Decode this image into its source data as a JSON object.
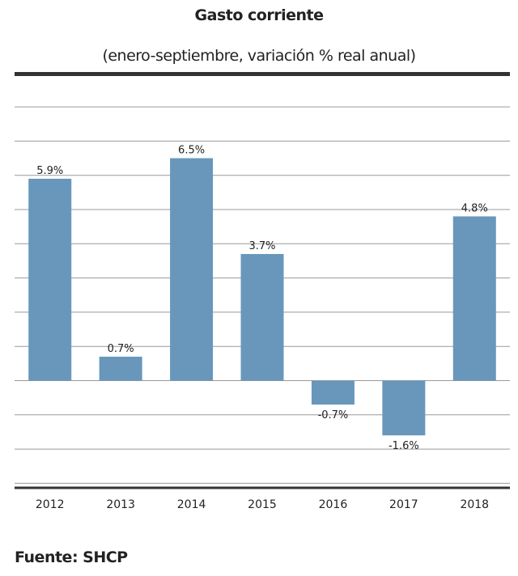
{
  "chart_data": {
    "type": "bar",
    "title": "Gasto corriente",
    "subtitle": "(enero-septiembre, variación % real anual)",
    "categories": [
      "2012",
      "2013",
      "2014",
      "2015",
      "2016",
      "2017",
      "2018"
    ],
    "values": [
      5.9,
      0.7,
      6.5,
      3.7,
      -0.7,
      -1.6,
      4.8
    ],
    "data_labels": [
      "5.9%",
      "0.7%",
      "6.5%",
      "3.7%",
      "-0.7%",
      "-1.6%",
      "4.8%"
    ],
    "xlabel": "",
    "ylabel": "",
    "ylim": [
      -3.0,
      8.0
    ],
    "grid": true,
    "legend": "none",
    "bar_color": "#6897bb"
  },
  "source": "Fuente: SHCP"
}
